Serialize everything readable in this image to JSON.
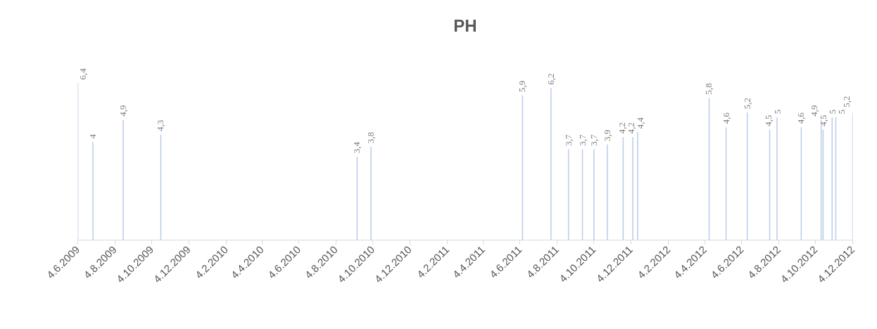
{
  "chart_data": {
    "type": "bar",
    "title": "PH",
    "x": [
      "2009-06-04",
      "2009-06-29",
      "2009-08-18",
      "2009-10-19",
      "2010-09-08",
      "2010-10-01",
      "2011-06-08",
      "2011-07-25",
      "2011-08-23",
      "2011-09-15",
      "2011-10-04",
      "2011-10-26",
      "2011-11-21",
      "2011-12-07",
      "2011-12-15",
      "2012-04-11",
      "2012-05-09",
      "2012-06-13",
      "2012-07-20",
      "2012-08-01",
      "2012-09-10",
      "2012-10-13",
      "2012-10-16",
      "2012-10-31",
      "2012-11-06",
      "2012-12-04"
    ],
    "values": [
      6.4,
      4,
      4.9,
      4.3,
      3.4,
      3.8,
      5.9,
      6.2,
      3.7,
      3.7,
      3.7,
      3.9,
      4.2,
      4.2,
      4.4,
      5.8,
      4.6,
      5.2,
      4.5,
      5,
      4.6,
      4.9,
      4.5,
      5,
      5,
      5.2
    ],
    "value_labels": [
      "6,4",
      "4",
      "4,9",
      "4,3",
      "3,4",
      "3,8",
      "5,9",
      "6,2",
      "3,7",
      "3,7",
      "3,7",
      "3,9",
      "4,2",
      "4,2",
      "4,4",
      "5,8",
      "4,6",
      "5,2",
      "4,5",
      "5",
      "4,6",
      "4,9",
      "4,5",
      "5",
      "5",
      "5,2"
    ],
    "color": "#b4c7e7",
    "tick_labels": "x",
    "grid": false,
    "xlim": [
      "2009-06-04",
      "2012-12-04"
    ],
    "xticks": [
      {
        "value": "2009-06-04",
        "label": "4.6.2009"
      },
      {
        "value": "2009-08-04",
        "label": "4.8.2009"
      },
      {
        "value": "2009-10-04",
        "label": "4.10.2009"
      },
      {
        "value": "2009-12-04",
        "label": "4.12.2009"
      },
      {
        "value": "2010-02-04",
        "label": "4.2.2010"
      },
      {
        "value": "2010-04-04",
        "label": "4.4.2010"
      },
      {
        "value": "2010-06-04",
        "label": "4.6.2010"
      },
      {
        "value": "2010-08-04",
        "label": "4.8.2010"
      },
      {
        "value": "2010-10-04",
        "label": "4.10.2010"
      },
      {
        "value": "2010-12-04",
        "label": "4.12.2010"
      },
      {
        "value": "2011-02-04",
        "label": "4.2.2011"
      },
      {
        "value": "2011-04-04",
        "label": "4.4.2011"
      },
      {
        "value": "2011-06-04",
        "label": "4.6.2011"
      },
      {
        "value": "2011-08-04",
        "label": "4.8.2011"
      },
      {
        "value": "2011-10-04",
        "label": "4.10.2011"
      },
      {
        "value": "2011-12-04",
        "label": "4.12.2011"
      },
      {
        "value": "2012-02-04",
        "label": "4.2.2012"
      },
      {
        "value": "2012-04-04",
        "label": "4.4.2012"
      },
      {
        "value": "2012-06-04",
        "label": "4.6.2012"
      },
      {
        "value": "2012-08-04",
        "label": "4.8.2012"
      },
      {
        "value": "2012-10-04",
        "label": "4.10.2012"
      },
      {
        "value": "2012-12-04",
        "label": "4.12.2012"
      }
    ]
  }
}
